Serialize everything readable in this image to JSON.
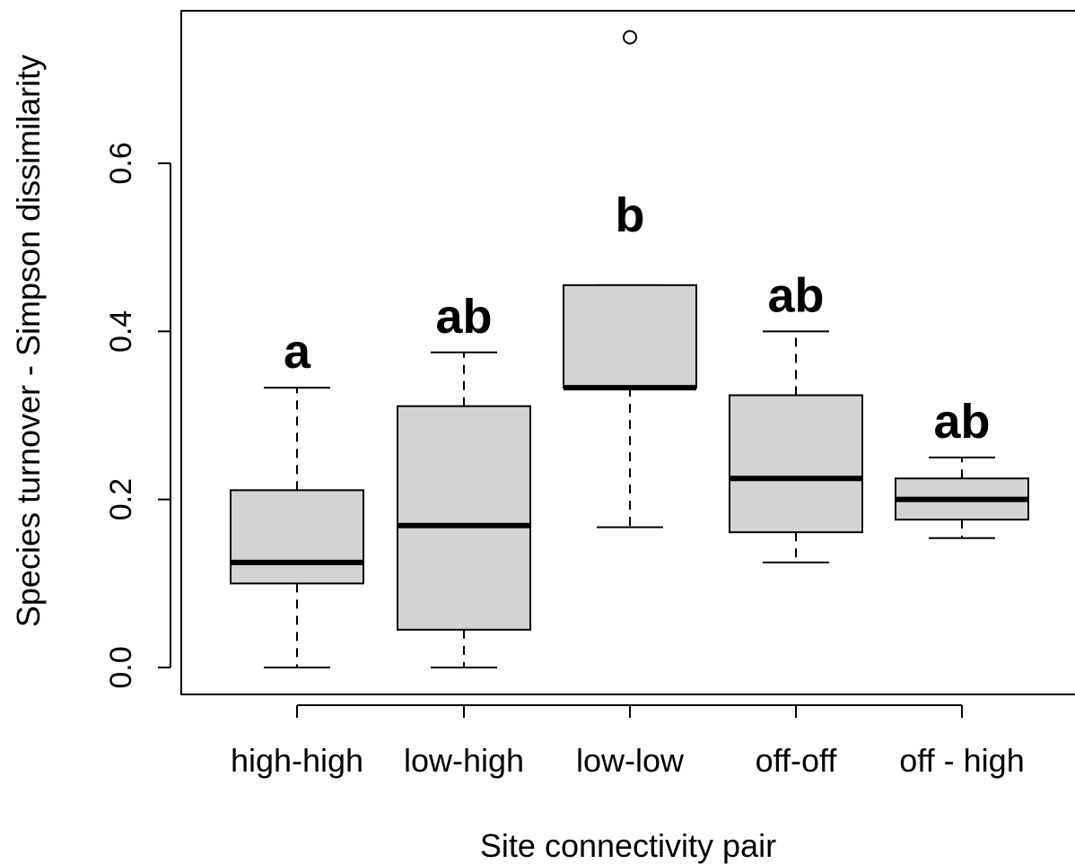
{
  "chart_data": {
    "type": "boxplot",
    "xlabel": "Site connectivity pair",
    "ylabel": "Species turnover - Simpson dissimilarity",
    "ylim": [
      -0.032,
      0.785
    ],
    "y_ticks": [
      0.0,
      0.2,
      0.4,
      0.6
    ],
    "y_tick_labels": [
      "0.0",
      "0.2",
      "0.4",
      "0.6"
    ],
    "grid": false,
    "box_fill": "#d3d3d3",
    "line_color": "#000000",
    "categories": [
      "high-high",
      "low-high",
      "low-low",
      "off-off",
      "off - high"
    ],
    "boxes": [
      {
        "min": 0.0,
        "q1": 0.1,
        "median": 0.125,
        "q3": 0.211,
        "max": 0.333,
        "outliers": [],
        "label": "a"
      },
      {
        "min": 0.0,
        "q1": 0.045,
        "median": 0.169,
        "q3": 0.311,
        "max": 0.375,
        "outliers": [],
        "label": "ab"
      },
      {
        "min": 0.167,
        "q1": 0.333,
        "median": 0.333,
        "q3": 0.455,
        "max": 0.455,
        "outliers": [
          0.75
        ],
        "label": "b"
      },
      {
        "min": 0.125,
        "q1": 0.161,
        "median": 0.225,
        "q3": 0.324,
        "max": 0.4,
        "outliers": [],
        "label": "ab"
      },
      {
        "min": 0.154,
        "q1": 0.176,
        "median": 0.2,
        "q3": 0.225,
        "max": 0.25,
        "outliers": [],
        "label": "ab"
      }
    ]
  }
}
